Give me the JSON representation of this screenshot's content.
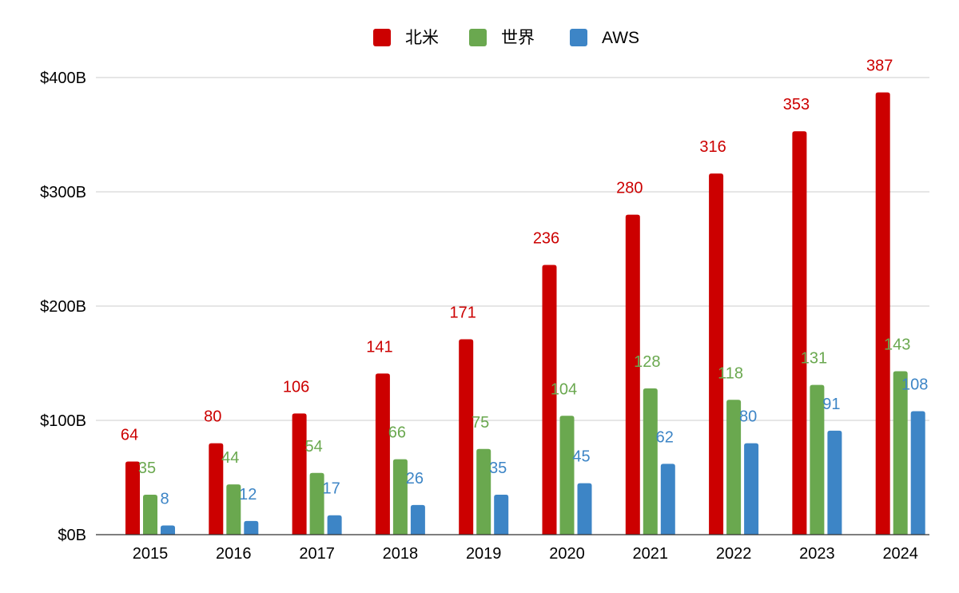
{
  "chart_data": {
    "type": "bar",
    "categories": [
      "2015",
      "2016",
      "2017",
      "2018",
      "2019",
      "2020",
      "2021",
      "2022",
      "2023",
      "2024"
    ],
    "series": [
      {
        "name": "北米",
        "color": "#cc0000",
        "values": [
          64,
          80,
          106,
          141,
          171,
          236,
          280,
          316,
          353,
          387
        ]
      },
      {
        "name": "世界",
        "color": "#6aa84f",
        "values": [
          35,
          44,
          54,
          66,
          75,
          104,
          128,
          118,
          131,
          143
        ]
      },
      {
        "name": "AWS",
        "color": "#3d85c6",
        "values": [
          8,
          12,
          17,
          26,
          35,
          45,
          62,
          80,
          91,
          108
        ]
      }
    ],
    "y_ticks": [
      {
        "value": 0,
        "label": "$0B"
      },
      {
        "value": 100,
        "label": "$100B"
      },
      {
        "value": 200,
        "label": "$200B"
      },
      {
        "value": 300,
        "label": "$300B"
      },
      {
        "value": 400,
        "label": "$400B"
      }
    ],
    "ylim": [
      0,
      400
    ],
    "grid": true,
    "legend": "top-center",
    "data_labels": true
  }
}
